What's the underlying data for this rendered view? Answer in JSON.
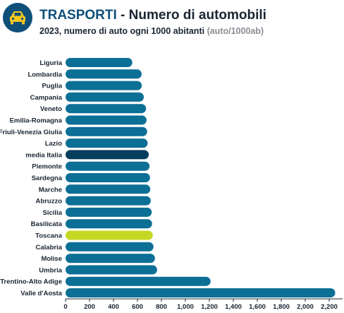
{
  "header": {
    "title_accent": "TRASPORTI",
    "title_rest": " - Numero di automobili",
    "subtitle_main": "2023, numero di auto ogni 1000 abitanti ",
    "subtitle_unit": "(auto/1000ab)",
    "icon": "car-icon"
  },
  "colors": {
    "bar": "#0c6f95",
    "highlight_italy": "#063e5e",
    "highlight_toscana": "#c6d723",
    "brand": "#0f4f7a"
  },
  "chart_data": {
    "type": "bar",
    "orientation": "horizontal",
    "categories": [
      "Liguria",
      "Lombardia",
      "Puglia",
      "Campania",
      "Veneto",
      "Emilia-Romagna",
      "Friuli-Venezia Giulia",
      "Lazio",
      "media Italia",
      "Piemonte",
      "Sardegna",
      "Marche",
      "Abruzzo",
      "Sicilia",
      "Basilicata",
      "Toscana",
      "Calabria",
      "Molise",
      "Umbria",
      "Trentino-Alto Adige",
      "Valle d'Aosta"
    ],
    "values": [
      557,
      635,
      636,
      653,
      672,
      676,
      681,
      685,
      694,
      701,
      705,
      707,
      711,
      719,
      722,
      728,
      734,
      746,
      764,
      1210,
      2250
    ],
    "highlight": {
      "media Italia": "highlight_italy",
      "Toscana": "highlight_toscana"
    },
    "xlim": [
      0,
      2300
    ],
    "xticks": [
      0,
      200,
      400,
      600,
      800,
      1000,
      1200,
      1400,
      1600,
      1800,
      2000,
      2200
    ],
    "xtick_labels": [
      "0",
      "200",
      "400",
      "600",
      "800",
      "1,000",
      "1,200",
      "1,400",
      "1,600",
      "1,800",
      "2,000",
      "2,200"
    ],
    "grid": false,
    "legend": "none"
  }
}
